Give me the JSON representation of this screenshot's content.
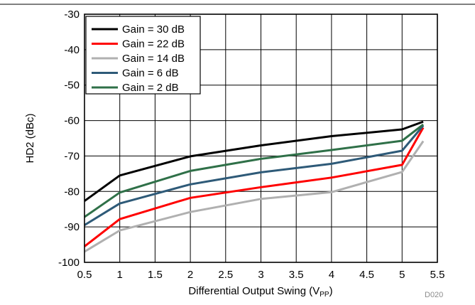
{
  "figure_id": "D020",
  "chart_data": {
    "type": "line",
    "title": "",
    "xlabel": "Differential Output Swing (V",
    "xlabel_subscript": "PP",
    "xlabel_suffix": ")",
    "ylabel": "HD2 (dBc)",
    "xlim": [
      0.5,
      5.5
    ],
    "ylim": [
      -100,
      -30
    ],
    "xticks": [
      0.5,
      1,
      1.5,
      2,
      2.5,
      3,
      3.5,
      4,
      4.5,
      5,
      5.5
    ],
    "xtick_labels": [
      "0.5",
      "1",
      "1.5",
      "2",
      "2.5",
      "3",
      "3.5",
      "4",
      "4.5",
      "5",
      "5.5"
    ],
    "yticks": [
      -30,
      -40,
      -50,
      -60,
      -70,
      -80,
      -90,
      -100
    ],
    "ytick_labels": [
      "-30",
      "-40",
      "-50",
      "-60",
      "-70",
      "-80",
      "-90",
      "-100"
    ],
    "grid": true,
    "legend_position": "top-left",
    "series": [
      {
        "name": "Gain = 30 dB",
        "color": "#000000",
        "x": [
          0.5,
          1,
          2,
          3,
          4,
          5,
          5.3
        ],
        "y": [
          -82.7,
          -75.5,
          -70.1,
          -67,
          -64.4,
          -62.5,
          -60.3
        ]
      },
      {
        "name": "Gain = 22 dB",
        "color": "#ff0000",
        "x": [
          0.5,
          1,
          2,
          3,
          4,
          5,
          5.3
        ],
        "y": [
          -95.5,
          -87.8,
          -81.8,
          -78.8,
          -76.1,
          -72.5,
          -62
        ]
      },
      {
        "name": "Gain = 14 dB",
        "color": "#b0b0b0",
        "x": [
          0.5,
          1,
          2,
          3,
          4,
          5,
          5.3
        ],
        "y": [
          -97,
          -91,
          -85.8,
          -82.1,
          -80.2,
          -74.5,
          -65.8
        ]
      },
      {
        "name": "Gain = 6 dB",
        "color": "#2e5a78",
        "x": [
          0.5,
          1,
          2,
          3,
          4,
          5,
          5.3
        ],
        "y": [
          -89.5,
          -83.4,
          -78,
          -74.6,
          -72.2,
          -68.5,
          -61.4
        ]
      },
      {
        "name": "Gain = 2 dB",
        "color": "#2f7048",
        "x": [
          0.5,
          1,
          2,
          3,
          4,
          5,
          5.3
        ],
        "y": [
          -87.2,
          -80.3,
          -74.2,
          -70.8,
          -68.3,
          -65.7,
          -61.1
        ]
      }
    ]
  }
}
